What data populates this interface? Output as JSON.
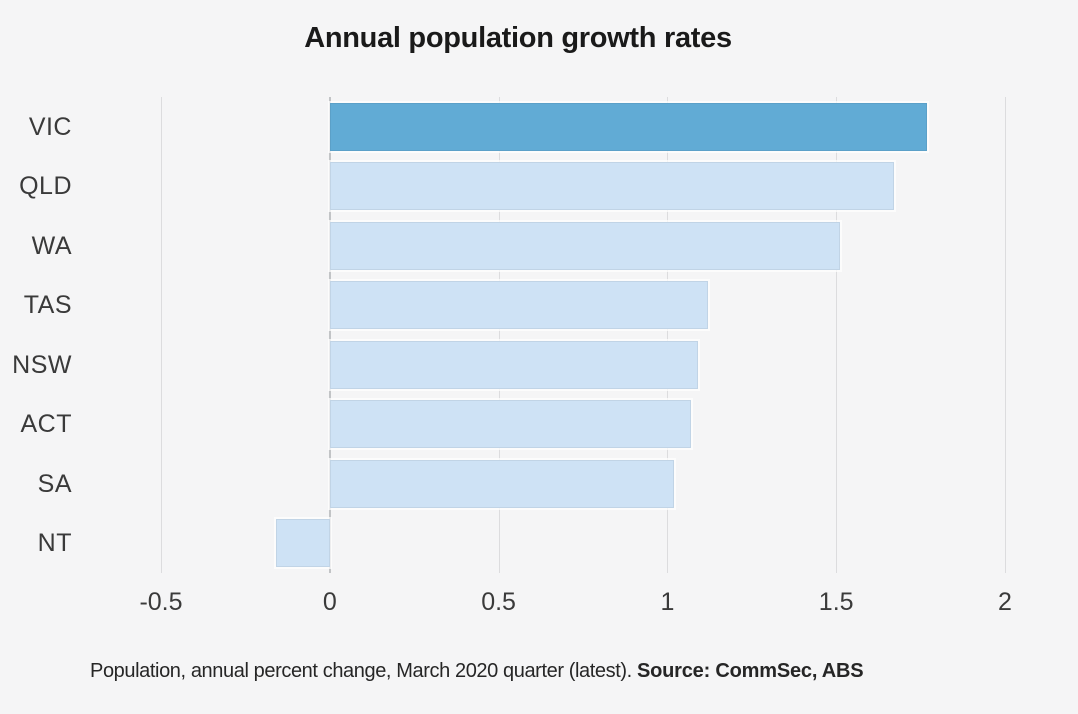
{
  "title": "Annual population growth rates",
  "caption": {
    "text": "Population, annual percent change, March 2020 quarter (latest). ",
    "source": "Source: CommSec, ABS"
  },
  "chart_data": {
    "type": "bar",
    "orientation": "horizontal",
    "title": "Annual population growth rates",
    "xlabel": "",
    "ylabel": "",
    "categories": [
      "VIC",
      "QLD",
      "WA",
      "TAS",
      "NSW",
      "ACT",
      "SA",
      "NT"
    ],
    "values": [
      1.77,
      1.67,
      1.51,
      1.12,
      1.09,
      1.07,
      1.02,
      -0.16
    ],
    "xlim": [
      -0.5,
      2.0
    ],
    "x_ticks": [
      -0.5,
      0,
      0.5,
      1,
      1.5,
      2
    ],
    "x_tick_labels": [
      "-0.5",
      "0",
      "0.5",
      "1",
      "1.5",
      "2"
    ],
    "grid": "vertical-only",
    "legend": "none",
    "highlight_category": "VIC",
    "colors": {
      "highlight": "#61abd5",
      "normal": "#cee2f5",
      "background": "#f5f5f6",
      "gridline": "#dcdcde",
      "zero_line": "#c2c4c6",
      "text": "#3a3a3a"
    },
    "annotation": "Population, annual percent change, March 2020 quarter (latest). Source: CommSec, ABS"
  }
}
